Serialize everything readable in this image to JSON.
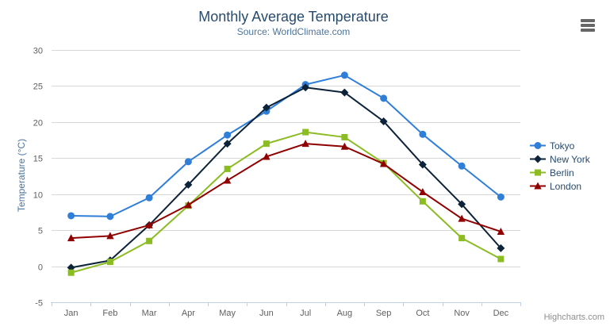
{
  "header": {
    "title": "Monthly Average Temperature",
    "subtitle": "Source: WorldClimate.com"
  },
  "toolbar": {
    "menu_icon": "hamburger-menu-icon"
  },
  "credits": "Highcharts.com",
  "colors": {
    "title": "#274b6d",
    "subtitle": "#4d759e",
    "axis_label": "#606060",
    "axis_line": "#c0d0e0",
    "gridline": "#d8d8d8",
    "legend_text": "#274b6d",
    "credits_text": "#8f8f8f"
  },
  "chart_data": {
    "type": "line",
    "title": "Monthly Average Temperature",
    "subtitle": "Source: WorldClimate.com",
    "categories": [
      "Jan",
      "Feb",
      "Mar",
      "Apr",
      "May",
      "Jun",
      "Jul",
      "Aug",
      "Sep",
      "Oct",
      "Nov",
      "Dec"
    ],
    "xlabel": "",
    "ylabel": "Temperature (°C)",
    "ylim": [
      -5,
      30
    ],
    "ytick_step": 5,
    "yticks": [
      -5,
      0,
      5,
      10,
      15,
      20,
      25,
      30
    ],
    "grid": true,
    "legend_position": "right",
    "series": [
      {
        "name": "Tokyo",
        "color": "#2f7ed8",
        "marker": "circle",
        "values": [
          7.0,
          6.9,
          9.5,
          14.5,
          18.2,
          21.5,
          25.2,
          26.5,
          23.3,
          18.3,
          13.9,
          9.6
        ]
      },
      {
        "name": "New York",
        "color": "#0d233a",
        "marker": "diamond",
        "values": [
          -0.2,
          0.8,
          5.7,
          11.3,
          17.0,
          22.0,
          24.8,
          24.1,
          20.1,
          14.1,
          8.6,
          2.5
        ]
      },
      {
        "name": "Berlin",
        "color": "#8bbc21",
        "marker": "square",
        "values": [
          -0.9,
          0.6,
          3.5,
          8.4,
          13.5,
          17.0,
          18.6,
          17.9,
          14.3,
          9.0,
          3.9,
          1.0
        ]
      },
      {
        "name": "London",
        "color": "#910000",
        "marker": "triangle",
        "values": [
          3.9,
          4.2,
          5.7,
          8.5,
          11.9,
          15.2,
          17.0,
          16.6,
          14.2,
          10.3,
          6.6,
          4.8
        ]
      }
    ]
  }
}
